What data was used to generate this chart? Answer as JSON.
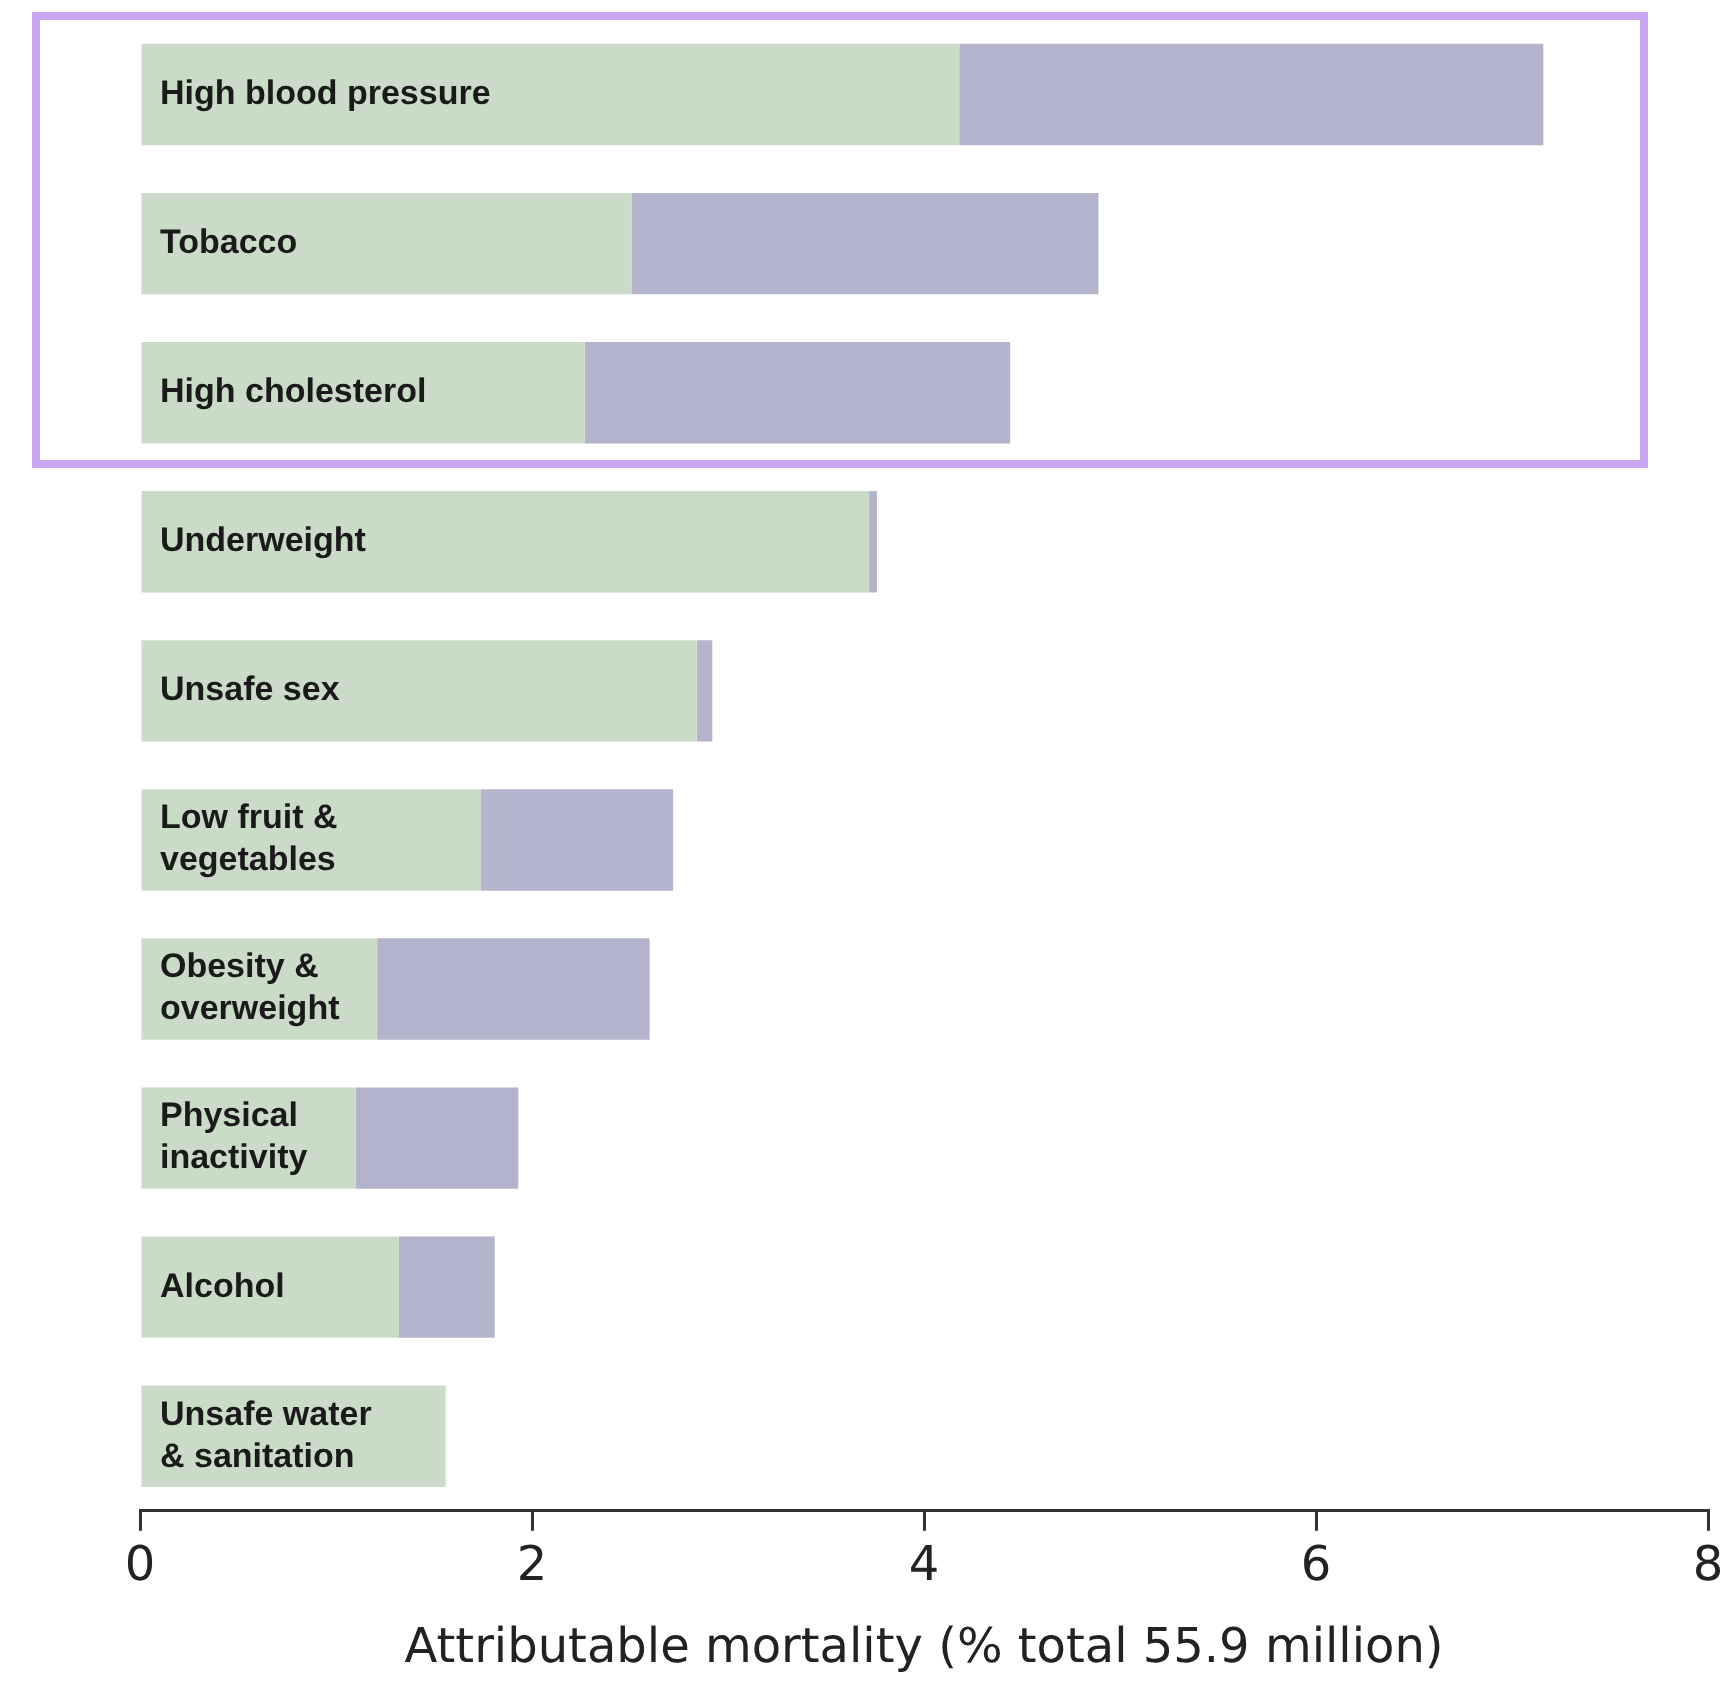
{
  "chart_data": {
    "type": "bar",
    "orientation": "horizontal",
    "stacked": true,
    "xlabel": "Attributable mortality (% total 55.9 million)",
    "categories": [
      "High blood pressure",
      "Tobacco",
      "High cholesterol",
      "Underweight",
      "Unsafe sex",
      "Low fruit & vegetables",
      "Obesity & overweight",
      "Physical inactivity",
      "Alcohol",
      "Unsafe water & sanitation"
    ],
    "series": [
      {
        "color": "#cadcc7",
        "values": [
          4.18,
          2.51,
          2.27,
          3.72,
          2.84,
          1.74,
          1.21,
          1.1,
          1.32,
          1.56
        ]
      },
      {
        "color": "#b3b3cc",
        "values": [
          2.98,
          2.38,
          2.17,
          0.04,
          0.08,
          0.98,
          1.39,
          0.83,
          0.49,
          0
        ]
      }
    ],
    "xlim": [
      0,
      8
    ],
    "xticks": [
      0,
      2,
      4,
      6,
      8
    ],
    "grid": false,
    "legend": false
  }
}
